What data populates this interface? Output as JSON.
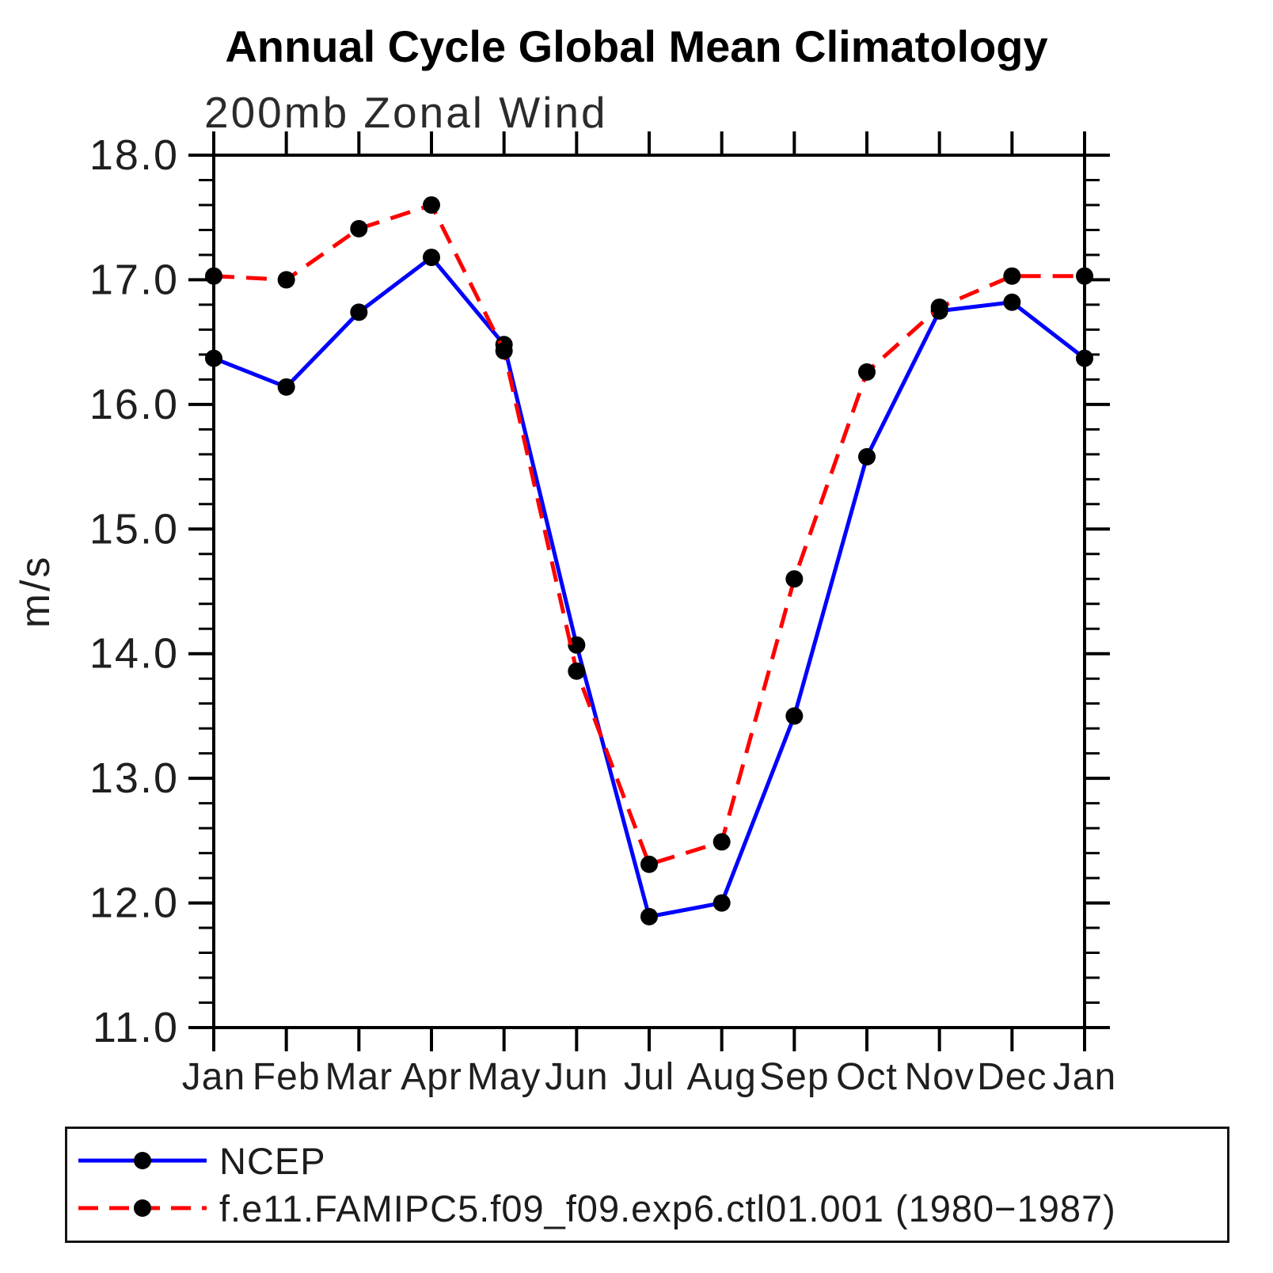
{
  "chart": {
    "title": "Annual Cycle Global Mean Climatology",
    "subtitle": "200mb Zonal Wind",
    "ylabel": "m/s"
  },
  "legend": {
    "entries": [
      {
        "label": "NCEP",
        "color": "#0000ff",
        "style": "solid"
      },
      {
        "label": "f.e11.FAMIPC5.f09_f09.exp6.ctl01.001 (1980−1987)",
        "color": "#ff0000",
        "style": "dashed"
      }
    ]
  },
  "chart_data": {
    "type": "line",
    "title": "Annual Cycle Global Mean Climatology",
    "subtitle": "200mb Zonal Wind",
    "xlabel": "",
    "ylabel": "m/s",
    "categories": [
      "Jan",
      "Feb",
      "Mar",
      "Apr",
      "May",
      "Jun",
      "Jul",
      "Aug",
      "Sep",
      "Oct",
      "Nov",
      "Dec",
      "Jan"
    ],
    "series": [
      {
        "name": "NCEP",
        "color": "#0000ff",
        "line_style": "solid",
        "marker": "filled-circle",
        "marker_color": "#000000",
        "values": [
          16.37,
          16.14,
          16.74,
          17.18,
          16.48,
          14.07,
          11.89,
          12.0,
          13.5,
          15.58,
          16.75,
          16.82,
          16.37
        ]
      },
      {
        "name": "f.e11.FAMIPC5.f09_f09.exp6.ctl01.001 (1980−1987)",
        "color": "#ff0000",
        "line_style": "dashed",
        "marker": "filled-circle",
        "marker_color": "#000000",
        "values": [
          17.03,
          17.0,
          17.41,
          17.6,
          16.43,
          13.86,
          12.31,
          12.49,
          14.6,
          16.26,
          16.78,
          17.03,
          17.03
        ]
      }
    ],
    "ylim": [
      11.0,
      18.0
    ],
    "y_major_step": 1.0,
    "y_minor_step": 0.2,
    "y_tick_labels": [
      "11.0",
      "12.0",
      "13.0",
      "14.0",
      "15.0",
      "16.0",
      "17.0",
      "18.0"
    ],
    "x_ticks_at_every_month": true,
    "grid": false,
    "legend_position": "bottom-left-box"
  }
}
